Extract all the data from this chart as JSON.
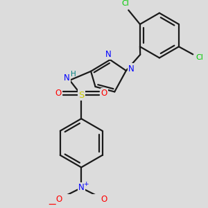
{
  "background_color": "#dcdcdc",
  "bond_color": "#1a1a1a",
  "bond_width": 1.6,
  "colors": {
    "N": "#0000ff",
    "O": "#ff0000",
    "S": "#cccc00",
    "Cl": "#00cc00",
    "H": "#008080",
    "C": "#1a1a1a"
  },
  "font_size_atom": 8.5,
  "font_size_small": 6.5
}
